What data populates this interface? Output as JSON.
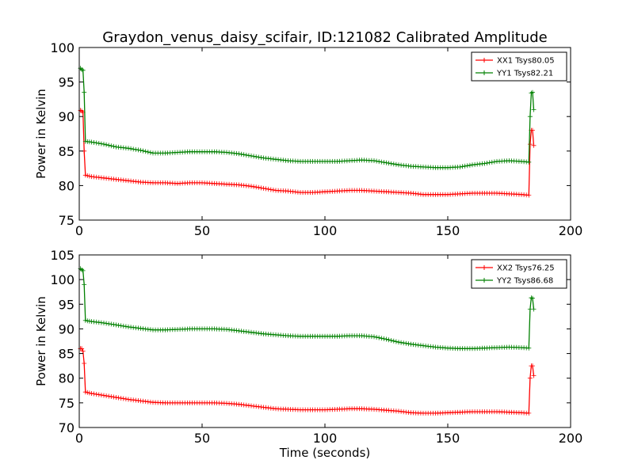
{
  "figure": {
    "title": "Graydon_venus_daisy_scifair, ID:121082 Calibrated Amplitude"
  },
  "chart_data": [
    {
      "type": "line",
      "xlabel": "",
      "ylabel": "Power in Kelvin",
      "xlim": [
        0,
        200
      ],
      "ylim": [
        75,
        100
      ],
      "xticks": [
        "0",
        "50",
        "100",
        "150",
        "200"
      ],
      "yticks": [
        "75",
        "80",
        "85",
        "90",
        "95",
        "100"
      ],
      "grid": false,
      "legend": "top-right",
      "series": [
        {
          "name": "XX1 Tsys80.05",
          "color": "#ff0000",
          "points": [
            [
              0.5,
              90.9
            ],
            [
              1,
              90.8
            ],
            [
              1.5,
              90.6
            ],
            [
              2,
              85
            ],
            [
              2.5,
              81.5
            ],
            [
              5,
              81.3
            ],
            [
              10,
              81.1
            ],
            [
              15,
              80.9
            ],
            [
              20,
              80.7
            ],
            [
              25,
              80.5
            ],
            [
              30,
              80.4
            ],
            [
              35,
              80.4
            ],
            [
              40,
              80.3
            ],
            [
              45,
              80.4
            ],
            [
              50,
              80.4
            ],
            [
              55,
              80.3
            ],
            [
              60,
              80.2
            ],
            [
              65,
              80.1
            ],
            [
              70,
              79.9
            ],
            [
              75,
              79.6
            ],
            [
              80,
              79.3
            ],
            [
              85,
              79.2
            ],
            [
              90,
              79
            ],
            [
              95,
              79
            ],
            [
              100,
              79.1
            ],
            [
              105,
              79.2
            ],
            [
              110,
              79.3
            ],
            [
              115,
              79.3
            ],
            [
              120,
              79.2
            ],
            [
              125,
              79.1
            ],
            [
              130,
              79
            ],
            [
              135,
              78.9
            ],
            [
              140,
              78.7
            ],
            [
              145,
              78.7
            ],
            [
              150,
              78.7
            ],
            [
              155,
              78.8
            ],
            [
              160,
              78.9
            ],
            [
              165,
              78.9
            ],
            [
              170,
              78.9
            ],
            [
              175,
              78.8
            ],
            [
              180,
              78.7
            ],
            [
              183,
              78.6
            ],
            [
              183.5,
              86
            ],
            [
              184,
              88
            ],
            [
              184.5,
              88
            ],
            [
              185,
              85.8
            ]
          ]
        },
        {
          "name": "YY1 Tsys82.21",
          "color": "#008000",
          "points": [
            [
              0.5,
              97
            ],
            [
              1,
              96.8
            ],
            [
              1.5,
              96.7
            ],
            [
              2,
              93.5
            ],
            [
              2.5,
              86.4
            ],
            [
              5,
              86.3
            ],
            [
              10,
              86
            ],
            [
              15,
              85.6
            ],
            [
              20,
              85.4
            ],
            [
              25,
              85.1
            ],
            [
              30,
              84.7
            ],
            [
              35,
              84.7
            ],
            [
              40,
              84.8
            ],
            [
              45,
              84.9
            ],
            [
              50,
              84.9
            ],
            [
              55,
              84.9
            ],
            [
              60,
              84.8
            ],
            [
              65,
              84.6
            ],
            [
              70,
              84.3
            ],
            [
              75,
              84
            ],
            [
              80,
              83.8
            ],
            [
              85,
              83.6
            ],
            [
              90,
              83.5
            ],
            [
              95,
              83.5
            ],
            [
              100,
              83.5
            ],
            [
              105,
              83.5
            ],
            [
              110,
              83.6
            ],
            [
              115,
              83.7
            ],
            [
              120,
              83.6
            ],
            [
              125,
              83.3
            ],
            [
              130,
              83
            ],
            [
              135,
              82.8
            ],
            [
              140,
              82.7
            ],
            [
              145,
              82.6
            ],
            [
              150,
              82.6
            ],
            [
              155,
              82.7
            ],
            [
              160,
              83
            ],
            [
              165,
              83.2
            ],
            [
              170,
              83.5
            ],
            [
              175,
              83.6
            ],
            [
              180,
              83.5
            ],
            [
              183,
              83.4
            ],
            [
              183.5,
              90
            ],
            [
              184,
              93.4
            ],
            [
              184.5,
              93.5
            ],
            [
              185,
              91
            ]
          ]
        }
      ]
    },
    {
      "type": "line",
      "xlabel": "Time (seconds)",
      "ylabel": "Power in Kelvin",
      "xlim": [
        0,
        200
      ],
      "ylim": [
        70,
        105
      ],
      "xticks": [
        "0",
        "50",
        "100",
        "150",
        "200"
      ],
      "yticks": [
        "70",
        "75",
        "80",
        "85",
        "90",
        "95",
        "100",
        "105"
      ],
      "grid": false,
      "legend": "top-right",
      "series": [
        {
          "name": "XX2 Tsys76.25",
          "color": "#ff0000",
          "points": [
            [
              0.5,
              86
            ],
            [
              1,
              86
            ],
            [
              1.5,
              85.5
            ],
            [
              2,
              83
            ],
            [
              2.5,
              77.2
            ],
            [
              5,
              76.9
            ],
            [
              10,
              76.5
            ],
            [
              15,
              76.1
            ],
            [
              20,
              75.7
            ],
            [
              25,
              75.4
            ],
            [
              30,
              75.1
            ],
            [
              35,
              75
            ],
            [
              40,
              75
            ],
            [
              45,
              75
            ],
            [
              50,
              75
            ],
            [
              55,
              75
            ],
            [
              60,
              74.9
            ],
            [
              65,
              74.7
            ],
            [
              70,
              74.4
            ],
            [
              75,
              74.1
            ],
            [
              80,
              73.8
            ],
            [
              85,
              73.7
            ],
            [
              90,
              73.6
            ],
            [
              95,
              73.6
            ],
            [
              100,
              73.6
            ],
            [
              105,
              73.7
            ],
            [
              110,
              73.8
            ],
            [
              115,
              73.8
            ],
            [
              120,
              73.7
            ],
            [
              125,
              73.5
            ],
            [
              130,
              73.3
            ],
            [
              135,
              73
            ],
            [
              140,
              72.9
            ],
            [
              145,
              72.9
            ],
            [
              150,
              73
            ],
            [
              155,
              73.1
            ],
            [
              160,
              73.2
            ],
            [
              165,
              73.2
            ],
            [
              170,
              73.2
            ],
            [
              175,
              73.1
            ],
            [
              180,
              73
            ],
            [
              183,
              72.9
            ],
            [
              183.5,
              80
            ],
            [
              184,
              82.5
            ],
            [
              184.5,
              82.5
            ],
            [
              185,
              80.5
            ]
          ]
        },
        {
          "name": "YY2 Tsys86.68",
          "color": "#008000",
          "points": [
            [
              0.5,
              102.2
            ],
            [
              1,
              102
            ],
            [
              1.5,
              101.8
            ],
            [
              2,
              99
            ],
            [
              2.5,
              91.7
            ],
            [
              5,
              91.5
            ],
            [
              10,
              91.2
            ],
            [
              15,
              90.8
            ],
            [
              20,
              90.4
            ],
            [
              25,
              90.1
            ],
            [
              30,
              89.8
            ],
            [
              35,
              89.8
            ],
            [
              40,
              89.9
            ],
            [
              45,
              90
            ],
            [
              50,
              90
            ],
            [
              55,
              90
            ],
            [
              60,
              89.9
            ],
            [
              65,
              89.6
            ],
            [
              70,
              89.3
            ],
            [
              75,
              89
            ],
            [
              80,
              88.8
            ],
            [
              85,
              88.6
            ],
            [
              90,
              88.5
            ],
            [
              95,
              88.5
            ],
            [
              100,
              88.5
            ],
            [
              105,
              88.5
            ],
            [
              110,
              88.6
            ],
            [
              115,
              88.6
            ],
            [
              120,
              88.4
            ],
            [
              125,
              87.9
            ],
            [
              130,
              87.3
            ],
            [
              135,
              86.9
            ],
            [
              140,
              86.6
            ],
            [
              145,
              86.3
            ],
            [
              150,
              86.1
            ],
            [
              155,
              86
            ],
            [
              160,
              86
            ],
            [
              165,
              86.1
            ],
            [
              170,
              86.2
            ],
            [
              175,
              86.3
            ],
            [
              180,
              86.2
            ],
            [
              183,
              86.1
            ],
            [
              183.5,
              94
            ],
            [
              184,
              96.3
            ],
            [
              184.5,
              96.2
            ],
            [
              185,
              94
            ]
          ]
        }
      ]
    }
  ]
}
